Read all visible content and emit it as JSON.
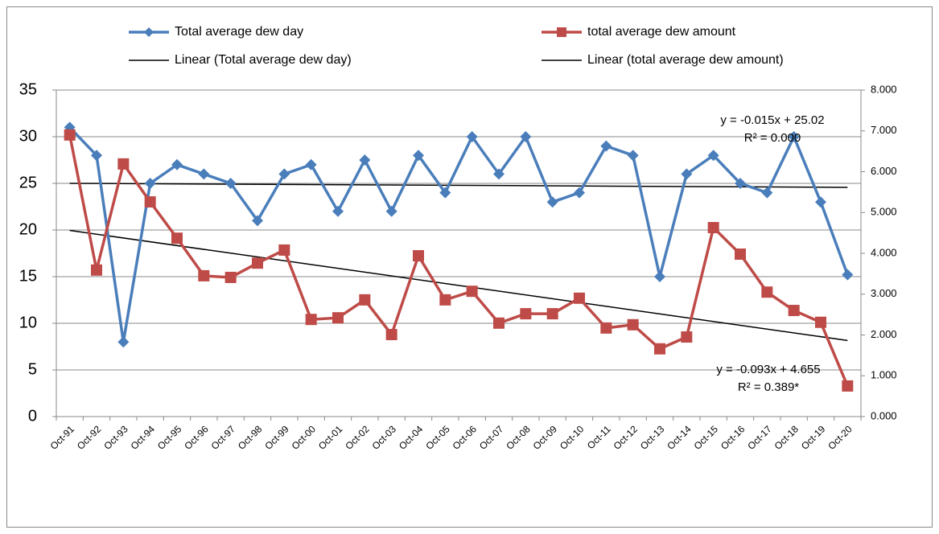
{
  "chart_data": {
    "type": "line",
    "categories": [
      "Oct-91",
      "Oct-92",
      "Oct-93",
      "Oct-94",
      "Oct-95",
      "Oct-96",
      "Oct-97",
      "Oct-98",
      "Oct-99",
      "Oct-00",
      "Oct-01",
      "Oct-02",
      "Oct-03",
      "Oct-04",
      "Oct-05",
      "Oct-06",
      "Oct-07",
      "Oct-08",
      "Oct-09",
      "Oct-10",
      "Oct-11",
      "Oct-12",
      "Oct-13",
      "Oct-14",
      "Oct-15",
      "Oct-16",
      "Oct-17",
      "Oct-18",
      "Oct-19",
      "Oct-20"
    ],
    "series": [
      {
        "name": "Total average dew day",
        "color": "#4a7ebb",
        "marker": "diamond",
        "axis": "y",
        "values": [
          31,
          28,
          8,
          25,
          27,
          26,
          25,
          21,
          26,
          27,
          22,
          27.5,
          22,
          28,
          24,
          30,
          26,
          30,
          23,
          24,
          29,
          28,
          15,
          26,
          28,
          25,
          24,
          30,
          23,
          15.2
        ]
      },
      {
        "name": "total average dew amount",
        "color": "#be4b48",
        "marker": "square",
        "axis": "y2",
        "values": [
          6.9,
          3.59,
          6.19,
          5.26,
          4.37,
          3.45,
          3.41,
          3.76,
          4.08,
          2.38,
          2.42,
          2.86,
          2.01,
          3.94,
          2.86,
          3.07,
          2.29,
          2.52,
          2.52,
          2.9,
          2.17,
          2.25,
          1.66,
          1.95,
          4.63,
          3.98,
          3.05,
          2.6,
          2.31,
          0.75
        ]
      }
    ],
    "trendlines": [
      {
        "name": "Linear (Total average dew day)",
        "color": "#000000",
        "axis": "y",
        "slope": -0.015,
        "intercept": 25.02,
        "equation": "y = -0.015x + 25.02",
        "r2": "R² = 0.000"
      },
      {
        "name": "Linear (total average dew amount)",
        "color": "#000000",
        "axis": "y2",
        "slope": -0.093,
        "intercept": 4.655,
        "equation": "y = -0.093x + 4.655",
        "r2": "R² = 0.389*"
      }
    ],
    "ylim": [
      0,
      35
    ],
    "yticks": [
      0,
      5,
      10,
      15,
      20,
      25,
      30,
      35
    ],
    "y2lim": [
      0,
      8
    ],
    "y2ticks": [
      {
        "value": 0,
        "label": "0.000"
      },
      {
        "value": 1,
        "label": "1.000"
      },
      {
        "value": 2,
        "label": "2.000"
      },
      {
        "value": 3,
        "label": "3.000"
      },
      {
        "value": 4,
        "label": "4.000"
      },
      {
        "value": 5,
        "label": "5.000"
      },
      {
        "value": 6,
        "label": "6.000"
      },
      {
        "value": 7,
        "label": "7.000"
      },
      {
        "value": 8,
        "label": "8.000"
      }
    ],
    "grid": true
  }
}
